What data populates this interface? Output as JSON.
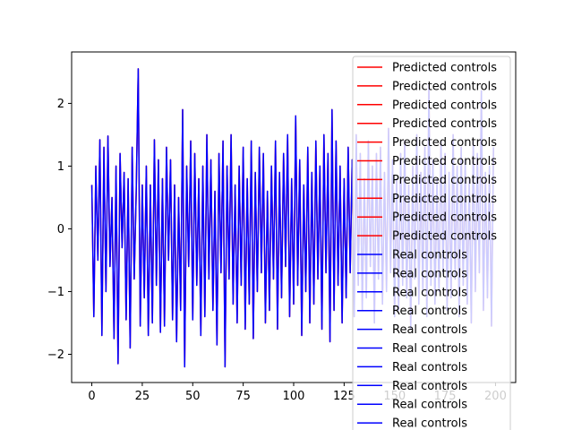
{
  "chart_data": {
    "type": "line",
    "title": "",
    "xlabel": "",
    "ylabel": "",
    "xlim": [
      -10,
      210
    ],
    "ylim": [
      -2.45,
      2.82
    ],
    "x_ticks": [
      0,
      25,
      50,
      75,
      100,
      125,
      150,
      175,
      200
    ],
    "y_ticks": [
      -2,
      -1,
      0,
      1,
      2
    ],
    "grid": false,
    "legend_placement": "right",
    "series_note": "10 predicted (red) series fully overdrawn by 10 real (blue) series; values sampled across x = 0..199",
    "x": [
      0,
      1,
      2,
      3,
      4,
      5,
      6,
      7,
      8,
      9,
      10,
      11,
      12,
      13,
      14,
      15,
      16,
      17,
      18,
      19,
      20,
      21,
      22,
      23,
      24,
      25,
      26,
      27,
      28,
      29,
      30,
      31,
      32,
      33,
      34,
      35,
      36,
      37,
      38,
      39,
      40,
      41,
      42,
      43,
      44,
      45,
      46,
      47,
      48,
      49,
      50,
      51,
      52,
      53,
      54,
      55,
      56,
      57,
      58,
      59,
      60,
      61,
      62,
      63,
      64,
      65,
      66,
      67,
      68,
      69,
      70,
      71,
      72,
      73,
      74,
      75,
      76,
      77,
      78,
      79,
      80,
      81,
      82,
      83,
      84,
      85,
      86,
      87,
      88,
      89,
      90,
      91,
      92,
      93,
      94,
      95,
      96,
      97,
      98,
      99,
      100,
      101,
      102,
      103,
      104,
      105,
      106,
      107,
      108,
      109,
      110,
      111,
      112,
      113,
      114,
      115,
      116,
      117,
      118,
      119,
      120,
      121,
      122,
      123,
      124,
      125,
      126,
      127,
      128,
      129,
      130,
      131,
      132,
      133,
      134,
      135,
      136,
      137,
      138,
      139,
      140,
      141,
      142,
      143,
      144,
      145,
      146,
      147,
      148,
      149,
      150,
      151,
      152,
      153,
      154,
      155,
      156,
      157,
      158,
      159,
      160,
      161,
      162,
      163,
      164,
      165,
      166,
      167,
      168,
      169,
      170,
      171,
      172,
      173,
      174,
      175,
      176,
      177,
      178,
      179,
      180,
      181,
      182,
      183,
      184,
      185,
      186,
      187,
      188,
      189,
      190,
      191,
      192,
      193,
      194,
      195,
      196,
      197,
      198,
      199
    ],
    "series": [
      {
        "name": "Predicted controls",
        "color": "#ff0000",
        "values": [
          0.7,
          -1.4,
          1.0,
          -0.5,
          1.42,
          -1.7,
          1.3,
          -1.0,
          1.48,
          -0.6,
          0.5,
          -1.75,
          1.0,
          -2.15,
          1.2,
          -0.3,
          0.9,
          -1.45,
          0.8,
          -1.9,
          1.3,
          -0.8,
          0.6,
          2.55,
          -1.55,
          0.7,
          -1.1,
          1.0,
          -1.7,
          0.7,
          -1.5,
          1.42,
          -0.9,
          1.1,
          -1.65,
          0.8,
          -1.55,
          1.3,
          -0.5,
          1.1,
          -1.45,
          0.7,
          -1.8,
          0.5,
          -1.3,
          1.9,
          -2.2,
          1.0,
          -0.6,
          1.4,
          -1.45,
          1.2,
          -0.9,
          0.8,
          -1.7,
          1.0,
          -1.4,
          1.5,
          -0.8,
          1.1,
          -1.3,
          0.6,
          -1.85,
          1.2,
          -0.7,
          1.4,
          -2.2,
          1.0,
          -0.8,
          1.5,
          -1.2,
          0.7,
          -1.5,
          1.0,
          -0.9,
          1.3,
          -1.6,
          0.8,
          -1.2,
          1.4,
          -1.75,
          0.9,
          -1.0,
          1.3,
          -0.7,
          1.2,
          -1.5,
          0.6,
          -1.3,
          1.0,
          -0.8,
          1.4,
          -1.6,
          0.9,
          -1.1,
          1.2,
          -0.6,
          1.5,
          -1.4,
          0.8,
          -1.2,
          1.8,
          -0.9,
          1.1,
          -1.7,
          0.7,
          -1.0,
          1.3,
          -1.5,
          0.9,
          -1.2,
          1.4,
          -0.8,
          1.0,
          -1.6,
          1.5,
          -0.7,
          1.2,
          -1.8,
          1.9,
          -1.3,
          1.4,
          -0.9,
          1.0,
          -1.5,
          0.8,
          -1.1,
          1.3,
          -0.7,
          1.1,
          -1.4,
          1.5,
          -0.9,
          1.2,
          -1.3,
          0.8,
          -1.1,
          1.4,
          -0.6,
          1.0,
          -1.5,
          1.2,
          -0.8,
          1.3,
          -1.2,
          0.9,
          -1.0,
          1.6,
          -0.7,
          1.1,
          -1.4,
          0.8,
          -1.3,
          1.2,
          -0.9,
          1.4,
          -1.1,
          0.7,
          -1.6,
          1.0,
          -0.8,
          1.5,
          -1.2,
          0.9,
          -1.0,
          1.3,
          -1.4,
          2.3,
          -0.9,
          1.1,
          -1.2,
          0.8,
          -1.0,
          1.4,
          -0.7,
          1.2,
          -1.3,
          0.9,
          -1.1,
          1.5,
          -0.8,
          1.0,
          -1.4,
          1.3,
          -0.9,
          1.1,
          -1.2,
          0.8,
          -1.5,
          1.4,
          -1.0,
          1.2,
          -0.7,
          2.2,
          -1.3,
          0.9,
          -1.1,
          1.0,
          -1.55,
          1.3
        ]
      },
      {
        "name": "Real controls",
        "color": "#0000ff",
        "values": [
          0.7,
          -1.4,
          1.0,
          -0.5,
          1.42,
          -1.7,
          1.3,
          -1.0,
          1.48,
          -0.6,
          0.5,
          -1.75,
          1.0,
          -2.15,
          1.2,
          -0.3,
          0.9,
          -1.45,
          0.8,
          -1.9,
          1.3,
          -0.8,
          0.6,
          2.55,
          -1.55,
          0.7,
          -1.1,
          1.0,
          -1.7,
          0.7,
          -1.5,
          1.42,
          -0.9,
          1.1,
          -1.65,
          0.8,
          -1.55,
          1.3,
          -0.5,
          1.1,
          -1.45,
          0.7,
          -1.8,
          0.5,
          -1.3,
          1.9,
          -2.2,
          1.0,
          -0.6,
          1.4,
          -1.45,
          1.2,
          -0.9,
          0.8,
          -1.7,
          1.0,
          -1.4,
          1.5,
          -0.8,
          1.1,
          -1.3,
          0.6,
          -1.85,
          1.2,
          -0.7,
          1.4,
          -2.2,
          1.0,
          -0.8,
          1.5,
          -1.2,
          0.7,
          -1.5,
          1.0,
          -0.9,
          1.3,
          -1.6,
          0.8,
          -1.2,
          1.4,
          -1.75,
          0.9,
          -1.0,
          1.3,
          -0.7,
          1.2,
          -1.5,
          0.6,
          -1.3,
          1.0,
          -0.8,
          1.4,
          -1.6,
          0.9,
          -1.1,
          1.2,
          -0.6,
          1.5,
          -1.4,
          0.8,
          -1.2,
          1.8,
          -0.9,
          1.1,
          -1.7,
          0.7,
          -1.0,
          1.3,
          -1.5,
          0.9,
          -1.2,
          1.4,
          -0.8,
          1.0,
          -1.6,
          1.5,
          -0.7,
          1.2,
          -1.8,
          1.9,
          -1.3,
          1.4,
          -0.9,
          1.0,
          -1.5,
          0.8,
          -1.1,
          1.3,
          -0.7,
          1.1,
          -1.4,
          1.5,
          -0.9,
          1.2,
          -1.3,
          0.8,
          -1.1,
          1.4,
          -0.6,
          1.0,
          -1.5,
          1.2,
          -0.8,
          1.3,
          -1.2,
          0.9,
          -1.0,
          1.6,
          -0.7,
          1.1,
          -1.4,
          0.8,
          -1.3,
          1.2,
          -0.9,
          1.4,
          -1.1,
          0.7,
          -1.6,
          1.0,
          -0.8,
          1.5,
          -1.2,
          0.9,
          -1.0,
          1.3,
          -1.4,
          2.3,
          -0.9,
          1.1,
          -1.2,
          0.8,
          -1.0,
          1.4,
          -0.7,
          1.2,
          -1.3,
          0.9,
          -1.1,
          1.5,
          -0.8,
          1.0,
          -1.4,
          1.3,
          -0.9,
          1.1,
          -1.2,
          0.8,
          -1.5,
          1.4,
          -1.0,
          1.2,
          -0.7,
          2.2,
          -1.3,
          0.9,
          -1.1,
          1.0,
          -1.55,
          1.3
        ]
      }
    ],
    "legend": [
      {
        "label": "Predicted controls",
        "color": "#ff0000"
      },
      {
        "label": "Predicted controls",
        "color": "#ff0000"
      },
      {
        "label": "Predicted controls",
        "color": "#ff0000"
      },
      {
        "label": "Predicted controls",
        "color": "#ff0000"
      },
      {
        "label": "Predicted controls",
        "color": "#ff0000"
      },
      {
        "label": "Predicted controls",
        "color": "#ff0000"
      },
      {
        "label": "Predicted controls",
        "color": "#ff0000"
      },
      {
        "label": "Predicted controls",
        "color": "#ff0000"
      },
      {
        "label": "Predicted controls",
        "color": "#ff0000"
      },
      {
        "label": "Predicted controls",
        "color": "#ff0000"
      },
      {
        "label": "Real controls",
        "color": "#0000ff"
      },
      {
        "label": "Real controls",
        "color": "#0000ff"
      },
      {
        "label": "Real controls",
        "color": "#0000ff"
      },
      {
        "label": "Real controls",
        "color": "#0000ff"
      },
      {
        "label": "Real controls",
        "color": "#0000ff"
      },
      {
        "label": "Real controls",
        "color": "#0000ff"
      },
      {
        "label": "Real controls",
        "color": "#0000ff"
      },
      {
        "label": "Real controls",
        "color": "#0000ff"
      },
      {
        "label": "Real controls",
        "color": "#0000ff"
      },
      {
        "label": "Real controls",
        "color": "#0000ff"
      }
    ]
  }
}
